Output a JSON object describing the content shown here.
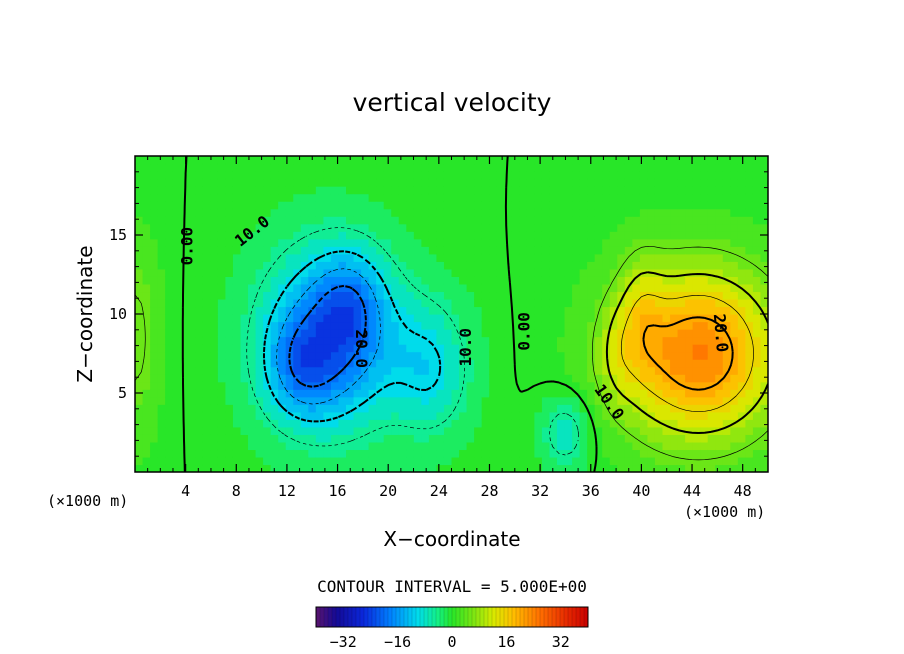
{
  "chart_data": {
    "type": "heatmap",
    "title": "vertical velocity",
    "xlabel": "X−coordinate",
    "ylabel": "Z−coordinate",
    "x_unit_left": "(×1000 m)",
    "x_unit_right": "(×1000 m)",
    "xlim": [
      0,
      50
    ],
    "ylim": [
      0,
      20
    ],
    "x_ticks": [
      4,
      8,
      12,
      16,
      20,
      24,
      28,
      32,
      36,
      40,
      44,
      48
    ],
    "y_ticks": [
      5,
      10,
      15
    ],
    "contour_interval_text": "CONTOUR INTERVAL = 5.000E+00",
    "contour_labels": [
      {
        "text": "0.00",
        "x": 4.2,
        "z": 14.3,
        "rotate": -90
      },
      {
        "text": "10.0",
        "x": 9.3,
        "z": 15.2,
        "rotate": -38
      },
      {
        "text": "20.0",
        "x": 17.8,
        "z": 7.8,
        "rotate": 90
      },
      {
        "text": "10.0",
        "x": 26.2,
        "z": 7.9,
        "rotate": -90
      },
      {
        "text": "0.00",
        "x": 30.8,
        "z": 8.9,
        "rotate": -90
      },
      {
        "text": "10.0",
        "x": 37.4,
        "z": 4.4,
        "rotate": 55
      },
      {
        "text": "20.0",
        "x": 46.2,
        "z": 8.8,
        "rotate": 85
      }
    ],
    "features": [
      {
        "name": "downdraft",
        "x": 15.5,
        "z": 8.5,
        "peak": -20
      },
      {
        "name": "updraft",
        "x": 44.5,
        "z": 7.5,
        "peak": 24
      },
      {
        "name": "weak-downdraft",
        "x": 34.0,
        "z": 2.5,
        "peak": -8
      }
    ],
    "colorbar": {
      "ticks": [
        "−32",
        "−16",
        "0",
        "16",
        "32"
      ],
      "tick_values": [
        -32,
        -16,
        0,
        16,
        32
      ],
      "range": [
        -40,
        40
      ]
    }
  }
}
